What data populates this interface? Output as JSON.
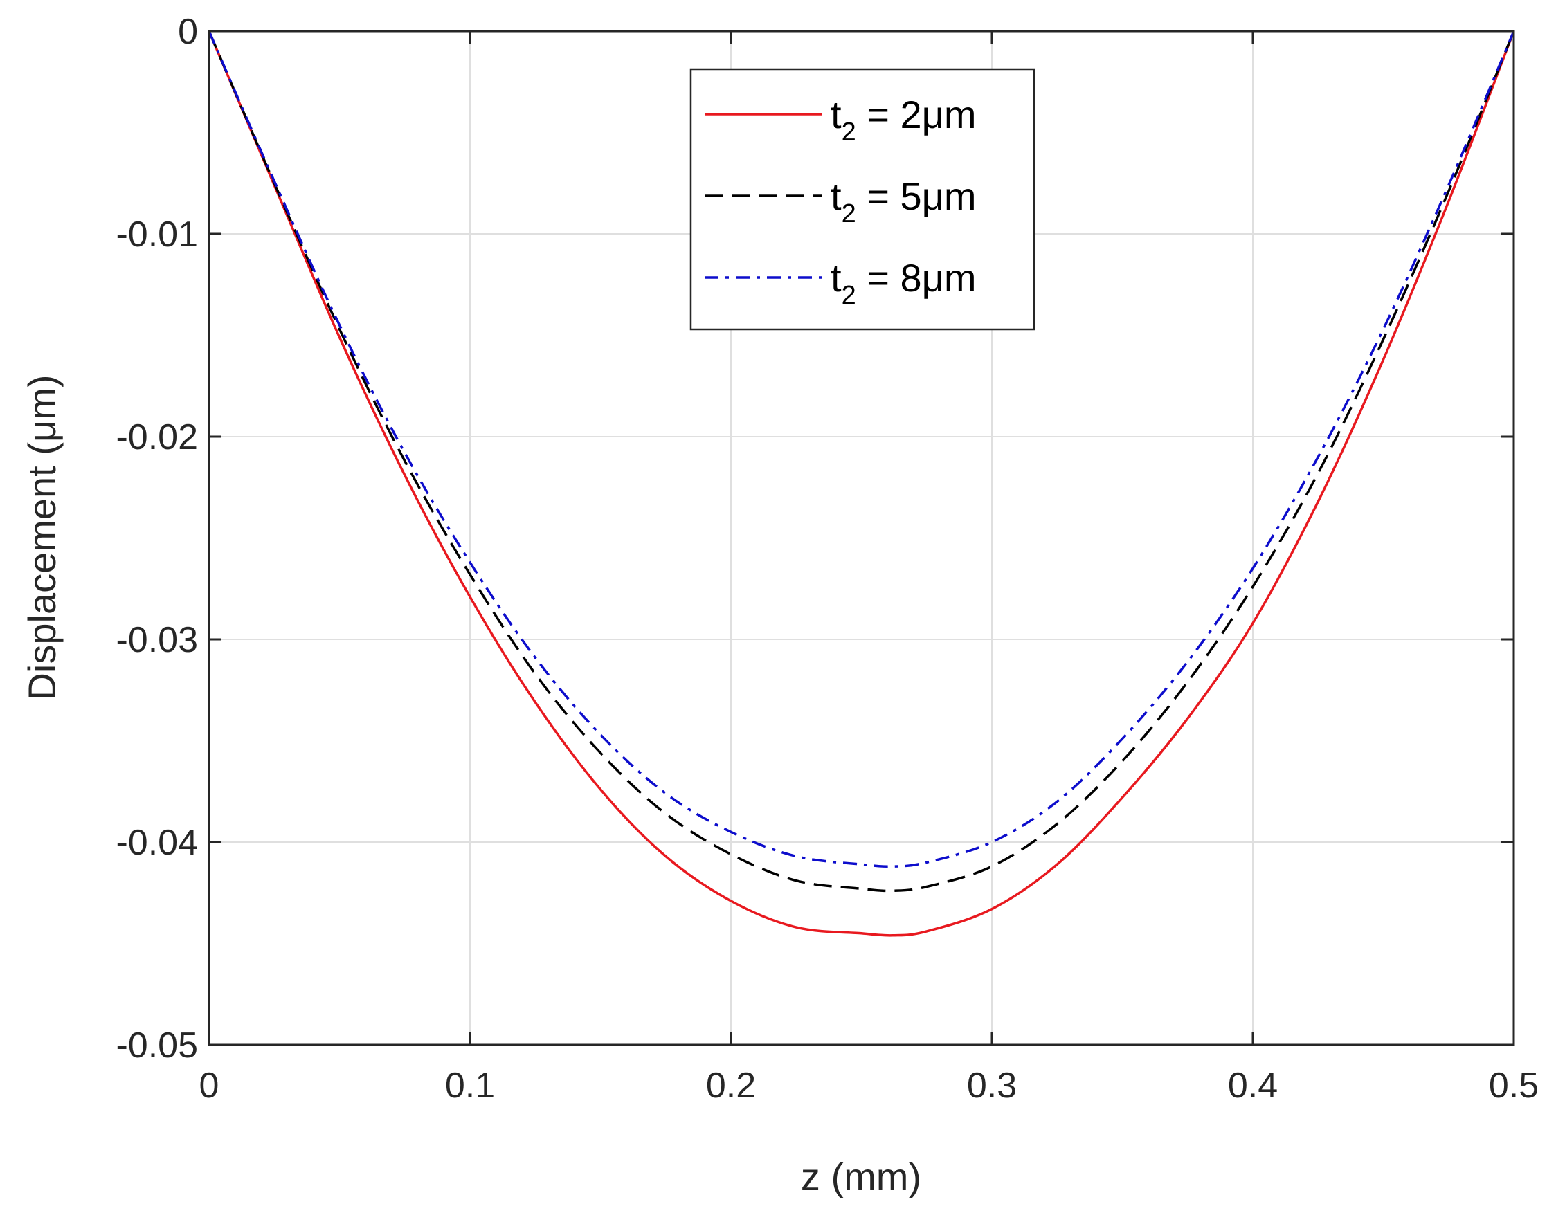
{
  "chart_data": {
    "type": "line",
    "title": "",
    "xlabel": "z (mm)",
    "ylabel": "Displacement (μm)",
    "xlim": [
      0,
      0.5
    ],
    "ylim": [
      -0.05,
      0
    ],
    "xticks": [
      0,
      0.1,
      0.2,
      0.3,
      0.4,
      0.5
    ],
    "xtick_labels": [
      "0",
      "0.1",
      "0.2",
      "0.3",
      "0.4",
      "0.5"
    ],
    "yticks": [
      0,
      -0.01,
      -0.02,
      -0.03,
      -0.04,
      -0.05
    ],
    "ytick_labels": [
      "0",
      "-0.01",
      "-0.02",
      "-0.03",
      "-0.04",
      "-0.05"
    ],
    "grid": true,
    "legend_position": "top-center",
    "series": [
      {
        "name": "t2 = 2μm",
        "label_main": "t",
        "label_sub": "2",
        "label_rest": " = 2μm",
        "color": "#e8191f",
        "style": "solid",
        "x": [
          0,
          0.025,
          0.05,
          0.075,
          0.1,
          0.125,
          0.15,
          0.175,
          0.2,
          0.225,
          0.25,
          0.262,
          0.275,
          0.3,
          0.325,
          0.35,
          0.375,
          0.4,
          0.425,
          0.45,
          0.475,
          0.5
        ],
        "y": [
          0,
          -0.0076,
          -0.0151,
          -0.0219,
          -0.0279,
          -0.0331,
          -0.0374,
          -0.0407,
          -0.0429,
          -0.0442,
          -0.0445,
          -0.0446,
          -0.0444,
          -0.0433,
          -0.0411,
          -0.0378,
          -0.0339,
          -0.0292,
          -0.0232,
          -0.0162,
          -0.0084,
          0
        ]
      },
      {
        "name": "t2 = 5μm",
        "label_main": "t",
        "label_sub": "2",
        "label_rest": " = 5μm",
        "color": "#000000",
        "style": "dashed",
        "x": [
          0,
          0.025,
          0.05,
          0.075,
          0.1,
          0.125,
          0.15,
          0.175,
          0.2,
          0.225,
          0.25,
          0.262,
          0.275,
          0.3,
          0.325,
          0.35,
          0.375,
          0.4,
          0.425,
          0.45,
          0.475,
          0.5
        ],
        "y": [
          0,
          -0.0075,
          -0.0147,
          -0.0212,
          -0.0268,
          -0.0317,
          -0.0356,
          -0.0386,
          -0.0406,
          -0.0419,
          -0.0423,
          -0.0424,
          -0.0422,
          -0.0412,
          -0.0391,
          -0.036,
          -0.0321,
          -0.0274,
          -0.0218,
          -0.0152,
          -0.0079,
          0
        ]
      },
      {
        "name": "t2 = 8μm",
        "label_main": "t",
        "label_sub": "2",
        "label_rest": " = 8μm",
        "color": "#0d0dcc",
        "style": "dashdot",
        "x": [
          0,
          0.025,
          0.05,
          0.075,
          0.1,
          0.125,
          0.15,
          0.175,
          0.2,
          0.225,
          0.25,
          0.262,
          0.275,
          0.3,
          0.325,
          0.35,
          0.375,
          0.4,
          0.425,
          0.45,
          0.475,
          0.5
        ],
        "y": [
          0,
          -0.0074,
          -0.0145,
          -0.0208,
          -0.0262,
          -0.0309,
          -0.0347,
          -0.0376,
          -0.0395,
          -0.0407,
          -0.0411,
          -0.0412,
          -0.041,
          -0.04,
          -0.038,
          -0.0349,
          -0.0311,
          -0.0265,
          -0.021,
          -0.0147,
          -0.0076,
          0
        ]
      }
    ]
  }
}
